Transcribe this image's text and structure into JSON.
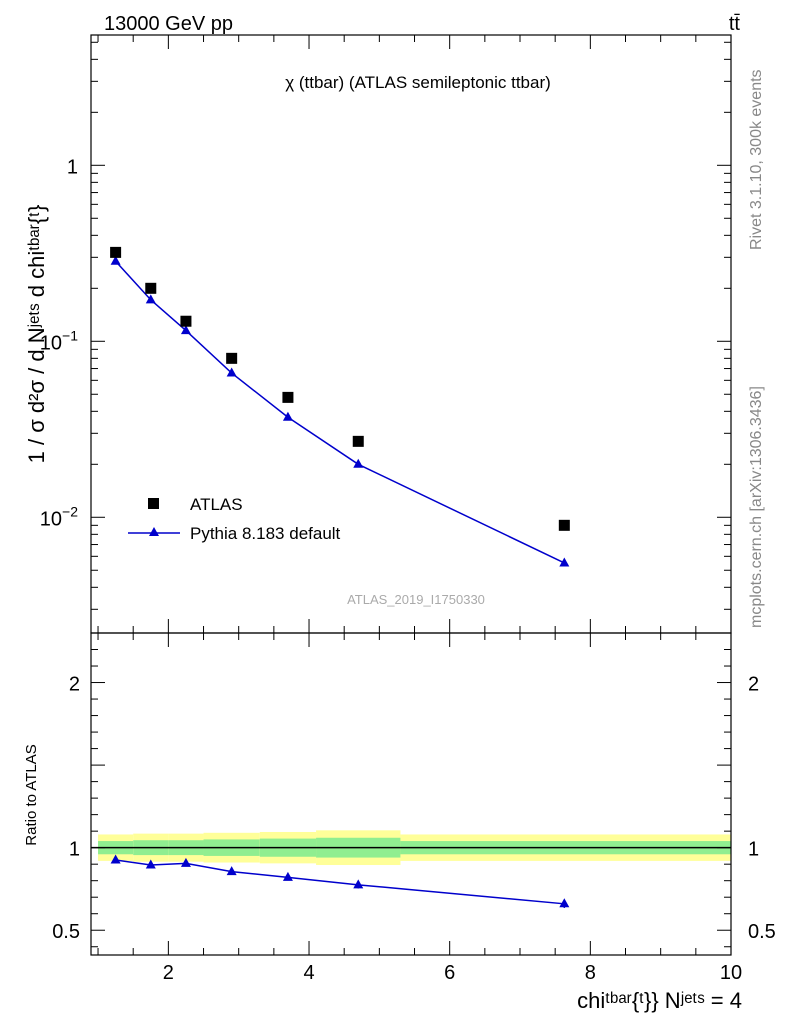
{
  "header": {
    "energy_label": "13000 GeV pp",
    "process_label": "tt̄"
  },
  "plot_title": "χ (ttbar) (ATLAS semileptonic ttbar)",
  "y_axis_label": "1 / σ d²σ / d Nʲᵉᵗˢ d chiᵗᵇᵃʳ{ᵗ}",
  "x_axis_label": "chiᵗᵇᵃʳ{ᵗ}} Nʲᵉᵗˢ = 4",
  "ratio_y_label": "Ratio to ATLAS",
  "side_text": {
    "rivet": "Rivet 3.1.10,  300k events",
    "mcplots": "mcplots.cern.ch [arXiv:1306.3436]"
  },
  "watermark": "ATLAS_2019_I1750330",
  "legend": {
    "data_label": "ATLAS",
    "mc_label": "Pythia 8.183 default"
  },
  "colors": {
    "data": "#000000",
    "mc": "#0000cc",
    "band_inner": "#90ee90",
    "band_outer": "#ffff99",
    "side_text": "#888888",
    "watermark": "#aaaaaa"
  },
  "chart_data": {
    "type": "scatter",
    "x_range": [
      0.9,
      10
    ],
    "main_ylim": [
      0.0022,
      5.5
    ],
    "main_yscale": "log",
    "main_y_ticks": [
      {
        "value": 1,
        "label": "1"
      },
      {
        "value": 0.1,
        "label": "10",
        "exp": "−1"
      },
      {
        "value": 0.01,
        "label": "10",
        "exp": "−2"
      }
    ],
    "ratio_ylim": [
      0.35,
      2.3
    ],
    "ratio_y_ticks": [
      {
        "value": 0.5,
        "label": "0.5"
      },
      {
        "value": 1,
        "label": "1"
      },
      {
        "value": 2,
        "label": "2"
      }
    ],
    "x_ticks": [
      {
        "value": 2,
        "label": "2"
      },
      {
        "value": 4,
        "label": "4"
      },
      {
        "value": 6,
        "label": "6"
      },
      {
        "value": 8,
        "label": "8"
      },
      {
        "value": 10,
        "label": "10"
      }
    ],
    "series": [
      {
        "name": "ATLAS",
        "x": [
          1.25,
          1.75,
          2.25,
          2.9,
          3.7,
          4.7,
          7.63
        ],
        "y": [
          0.32,
          0.2,
          0.13,
          0.08,
          0.048,
          0.027,
          0.009
        ]
      },
      {
        "name": "Pythia 8.183 default",
        "x": [
          1.25,
          1.75,
          2.25,
          2.9,
          3.7,
          4.7,
          7.63
        ],
        "y": [
          0.285,
          0.172,
          0.115,
          0.066,
          0.037,
          0.02,
          0.0055
        ]
      }
    ],
    "ratio": {
      "x": [
        1.25,
        1.75,
        2.25,
        2.9,
        3.7,
        4.7,
        7.63
      ],
      "y": [
        0.925,
        0.895,
        0.905,
        0.855,
        0.82,
        0.775,
        0.66
      ],
      "err": [
        0.008,
        0.01,
        0.012,
        0.015,
        0.018,
        0.022,
        0.025
      ]
    },
    "bands": [
      {
        "x0": 1.0,
        "x1": 1.5,
        "inner": 0.04,
        "outer": 0.08
      },
      {
        "x0": 1.5,
        "x1": 2.0,
        "inner": 0.045,
        "outer": 0.085
      },
      {
        "x0": 2.0,
        "x1": 2.5,
        "inner": 0.045,
        "outer": 0.085
      },
      {
        "x0": 2.5,
        "x1": 3.3,
        "inner": 0.05,
        "outer": 0.09
      },
      {
        "x0": 3.3,
        "x1": 4.1,
        "inner": 0.055,
        "outer": 0.095
      },
      {
        "x0": 4.1,
        "x1": 5.3,
        "inner": 0.06,
        "outer": 0.105
      },
      {
        "x0": 5.3,
        "x1": 10.0,
        "inner": 0.04,
        "outer": 0.08
      }
    ]
  }
}
